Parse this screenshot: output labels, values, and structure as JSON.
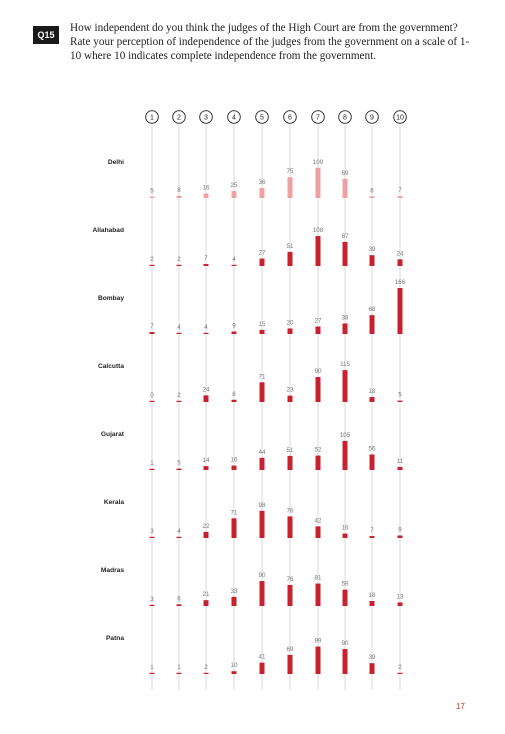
{
  "question": {
    "badge": "Q15",
    "text": "How independent do you think the judges of the High Court are from the government? Rate your perception of independence of the judges from the government on a scale of 1-10 where 10 indicates complete independence from the government."
  },
  "page_number": "17",
  "colors": {
    "primary": "#c8202f",
    "delhi": "#efa0a4",
    "stem": "#d9d9d9"
  },
  "chart_data": {
    "type": "bar",
    "categories": [
      "1",
      "2",
      "3",
      "4",
      "5",
      "6",
      "7",
      "8",
      "9",
      "10"
    ],
    "series": [
      {
        "name": "Delhi",
        "values": [
          5,
          8,
          16,
          25,
          36,
          75,
          109,
          69,
          6,
          7
        ]
      },
      {
        "name": "Allahabad",
        "values": [
          2,
          2,
          7,
          4,
          27,
          51,
          108,
          87,
          39,
          24
        ]
      },
      {
        "name": "Bombay",
        "values": [
          7,
          4,
          4,
          9,
          15,
          20,
          27,
          38,
          68,
          166
        ]
      },
      {
        "name": "Calcutta",
        "values": [
          0,
          2,
          24,
          8,
          71,
          23,
          90,
          115,
          18,
          5
        ]
      },
      {
        "name": "Gujarat",
        "values": [
          1,
          5,
          14,
          16,
          44,
          51,
          52,
          105,
          56,
          11
        ]
      },
      {
        "name": "Kerala",
        "values": [
          3,
          4,
          22,
          71,
          98,
          78,
          42,
          16,
          7,
          9
        ]
      },
      {
        "name": "Madras",
        "values": [
          3,
          6,
          21,
          33,
          90,
          76,
          81,
          59,
          18,
          13
        ]
      },
      {
        "name": "Patna",
        "values": [
          1,
          1,
          2,
          10,
          41,
          69,
          99,
          90,
          39,
          2
        ]
      }
    ],
    "ymax": 166
  }
}
